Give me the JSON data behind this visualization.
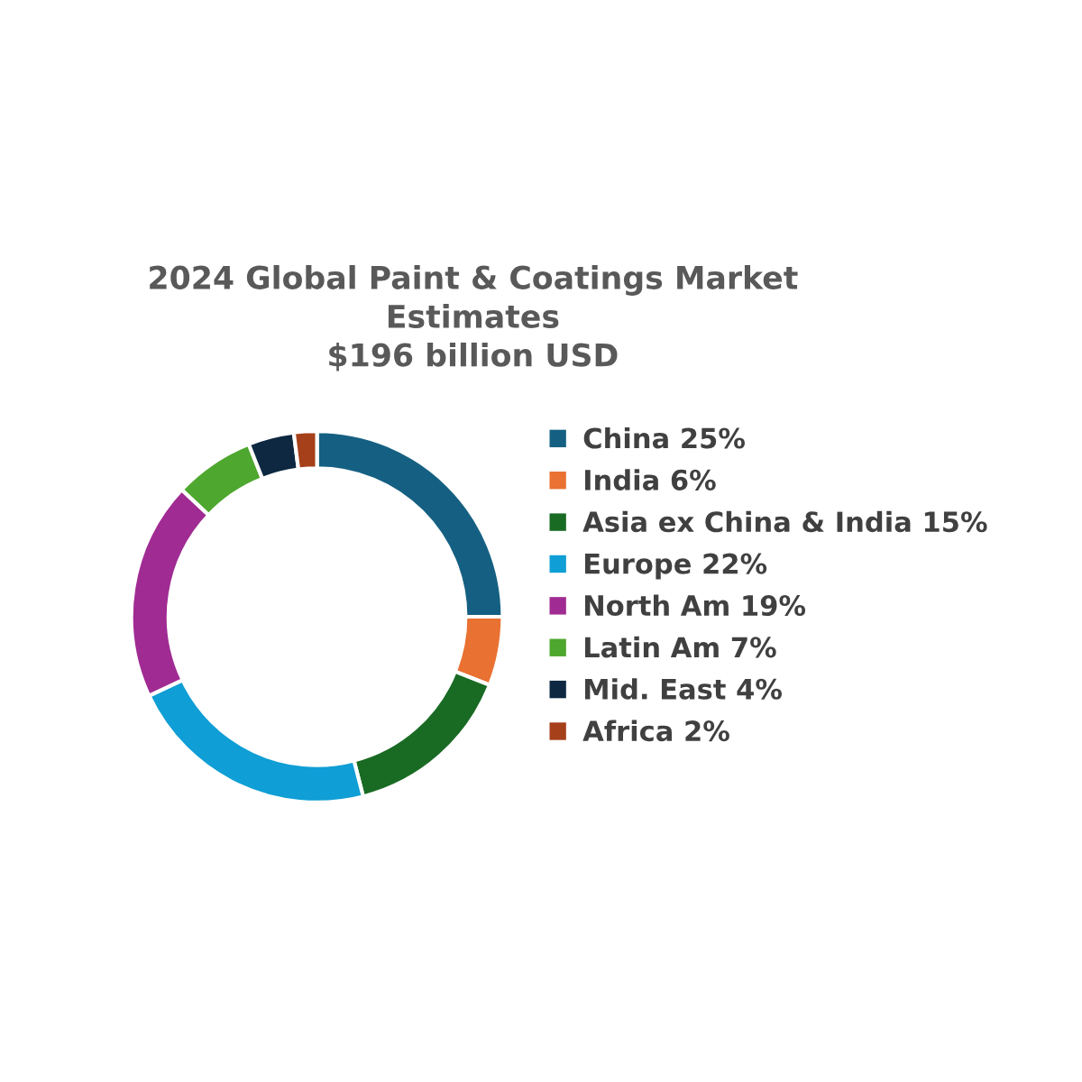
{
  "chart_data": {
    "type": "donut",
    "title": "2024 Global Paint & Coatings Market\nEstimates\n$196 billion USD",
    "categories": [
      "China 25%",
      "India 6%",
      "Asia ex China & India 15%",
      "Europe 22%",
      "North Am 19%",
      "Latin Am 7%",
      "Mid. East 4%",
      "Africa 2%"
    ],
    "values": [
      25,
      6,
      15,
      22,
      19,
      7,
      4,
      2
    ],
    "colors": [
      "#156082",
      "#e97132",
      "#196b24",
      "#0f9ed5",
      "#a02b93",
      "#4ea72e",
      "#0e2841",
      "#a5401b"
    ],
    "legend": "right"
  }
}
